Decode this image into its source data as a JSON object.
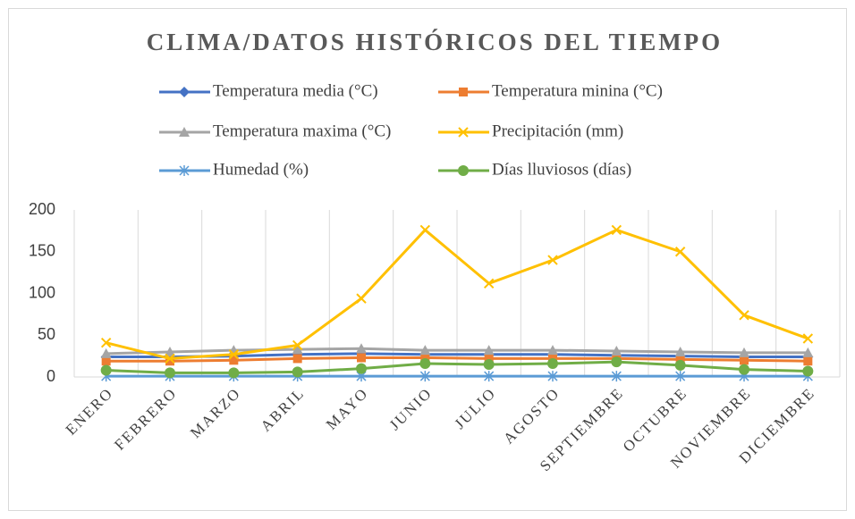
{
  "chart_data": {
    "type": "line",
    "title": "CLIMA/DATOS HISTÓRICOS DEL TIEMPO",
    "categories": [
      "ENERO",
      "FEBRERO",
      "MARZO",
      "ABRIL",
      "MAYO",
      "JUNIO",
      "JULIO",
      "AGOSTO",
      "SEPTIEMBRE",
      "OCTUBRE",
      "NOVIEMBRE",
      "DICIEMBRE"
    ],
    "series": [
      {
        "name": "Temperatura media (°C)",
        "color": "#4472c4",
        "marker": "diamond",
        "values": [
          24,
          24,
          25,
          27,
          28,
          27,
          27,
          27,
          26,
          25,
          24,
          24
        ]
      },
      {
        "name": "Temperatura minina (°C)",
        "color": "#ed7d31",
        "marker": "square",
        "values": [
          19,
          19,
          20,
          22,
          23,
          23,
          22,
          22,
          22,
          21,
          20,
          19
        ]
      },
      {
        "name": "Temperatura maxima (°C)",
        "color": "#a5a5a5",
        "marker": "triangle",
        "values": [
          28,
          30,
          32,
          33,
          34,
          32,
          32,
          32,
          31,
          30,
          29,
          29
        ]
      },
      {
        "name": "Precipitación (mm)",
        "color": "#ffc000",
        "marker": "x",
        "values": [
          41,
          22,
          27,
          38,
          94,
          176,
          112,
          140,
          176,
          150,
          74,
          46
        ]
      },
      {
        "name": "Humedad (%)",
        "color": "#5b9bd5",
        "marker": "star",
        "values": [
          1,
          1,
          1,
          1,
          1,
          1,
          1,
          1,
          1,
          1,
          1,
          1
        ]
      },
      {
        "name": "Días lluviosos (días)",
        "color": "#70ad47",
        "marker": "circle",
        "values": [
          8,
          5,
          5,
          6,
          10,
          16,
          15,
          16,
          18,
          14,
          9,
          7
        ]
      }
    ],
    "ylim": [
      0,
      200
    ],
    "yticks": [
      0,
      50,
      100,
      150,
      200
    ],
    "grid": true
  }
}
